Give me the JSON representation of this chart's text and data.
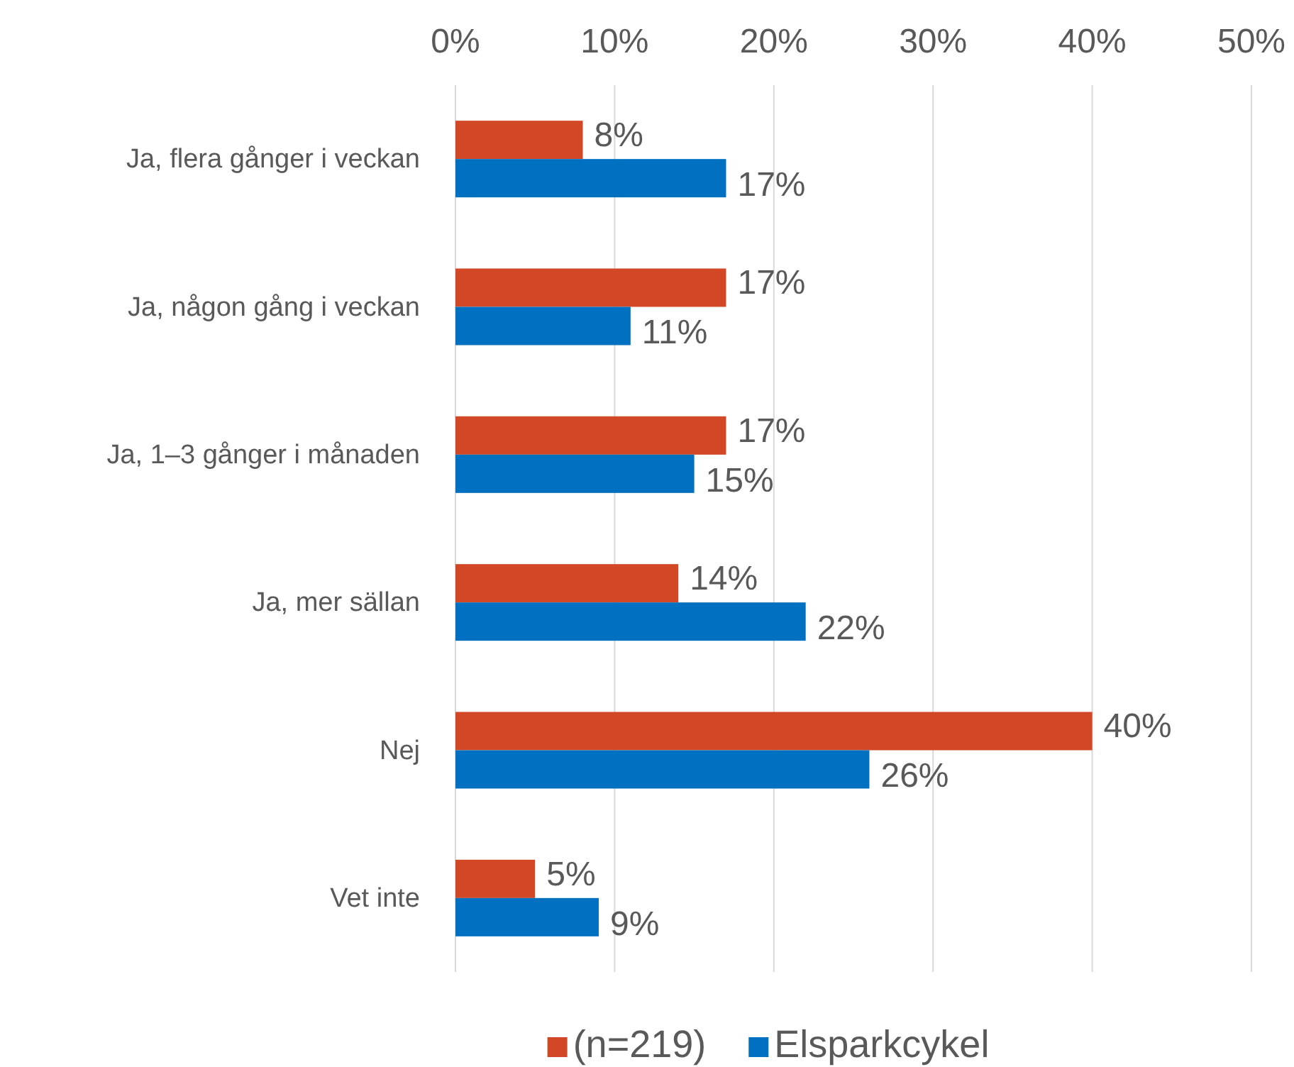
{
  "chart_data": {
    "type": "bar",
    "orientation": "horizontal",
    "categories": [
      "Ja, flera gånger i veckan",
      "Ja, någon gång i veckan",
      "Ja, 1–3 gånger i månaden",
      "Ja, mer sällan",
      "Nej",
      "Vet inte"
    ],
    "series": [
      {
        "name": "(n=219)",
        "color": "#d24726",
        "values": [
          8,
          17,
          17,
          14,
          40,
          5
        ],
        "value_labels": [
          "8%",
          "17%",
          "17%",
          "14%",
          "40%",
          "5%"
        ]
      },
      {
        "name": "Elsparkcykel",
        "color": "#0070c0",
        "values": [
          17,
          11,
          15,
          22,
          26,
          9
        ],
        "value_labels": [
          "17%",
          "11%",
          "15%",
          "22%",
          "26%",
          "9%"
        ]
      }
    ],
    "xlim": [
      0,
      50
    ],
    "xticks": [
      {
        "value": 0,
        "label": "0%"
      },
      {
        "value": 10,
        "label": "10%"
      },
      {
        "value": 20,
        "label": "20%"
      },
      {
        "value": 30,
        "label": "30%"
      },
      {
        "value": 40,
        "label": "40%"
      },
      {
        "value": 50,
        "label": "50%"
      }
    ],
    "grid": "x",
    "legend": "bottom"
  }
}
